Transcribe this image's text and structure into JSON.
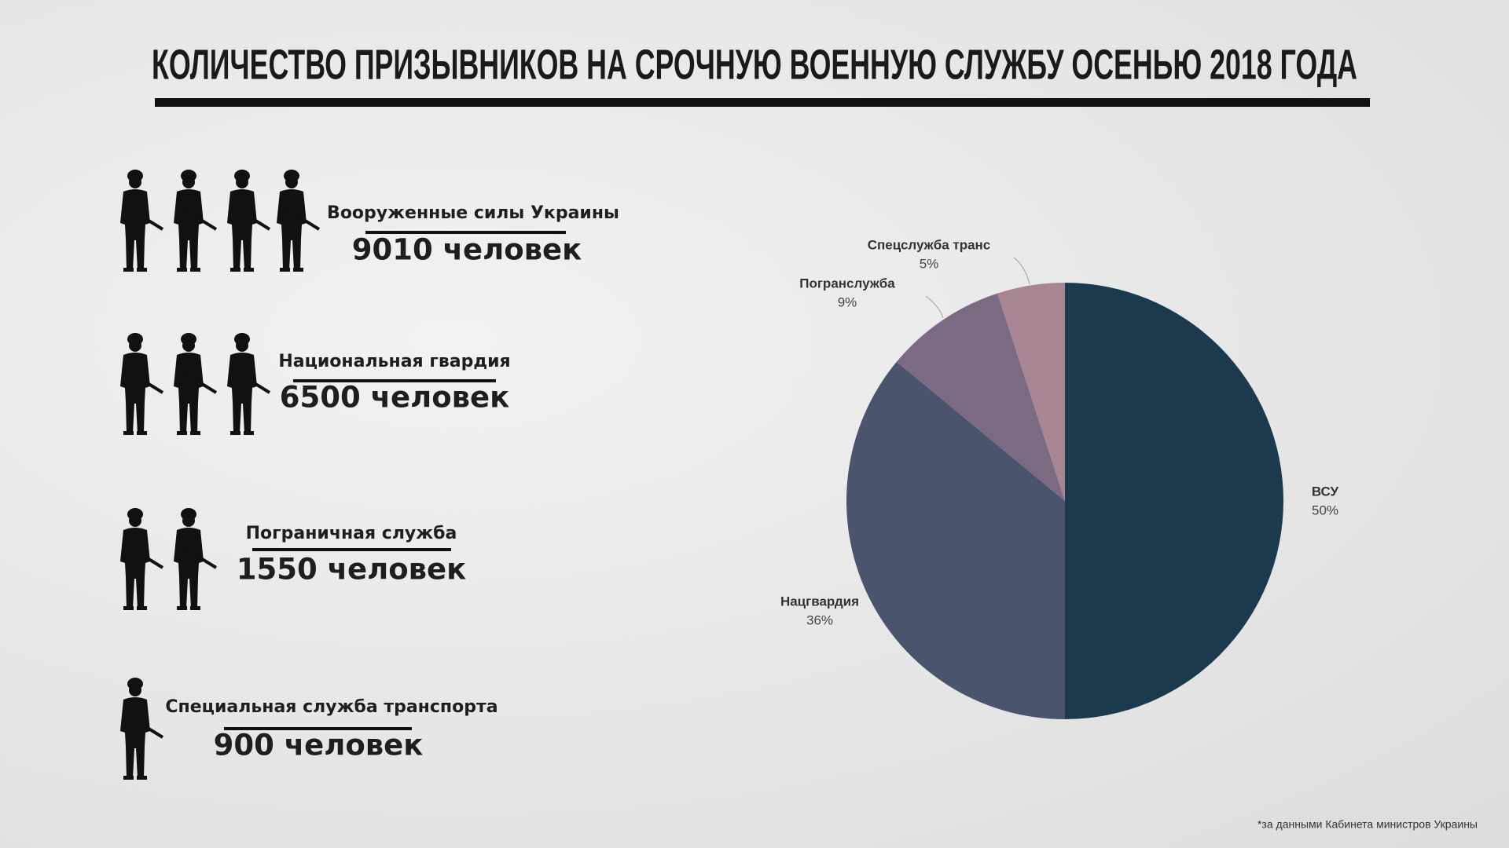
{
  "header": {
    "title": "КОЛИЧЕСТВО ПРИЗЫВНИКОВ НА СРОЧНУЮ ВОЕННУЮ СЛУЖБУ ОСЕНЬЮ 2018 ГОДА"
  },
  "items": [
    {
      "name": "Вооруженные силы Украины",
      "count": "9010 человек"
    },
    {
      "name": "Национальная гвардия",
      "count": "6500 человек"
    },
    {
      "name": "Пограничная служба",
      "count": "1550 человек"
    },
    {
      "name": "Специальная служба транспорта",
      "count": "900 человек"
    }
  ],
  "chart_data": {
    "type": "pie",
    "categories": [
      "ВСУ",
      "Нацгвардия",
      "Погранслужба",
      "Спецслужба транс"
    ],
    "values": [
      50,
      36,
      9,
      5
    ],
    "value_labels": [
      "50%",
      "36%",
      "9%",
      "5%"
    ],
    "colors": [
      "#1c3a4e",
      "#4a546c",
      "#7a6a82",
      "#a88592"
    ]
  },
  "footnote": "*за данными Кабинета министров Украины"
}
